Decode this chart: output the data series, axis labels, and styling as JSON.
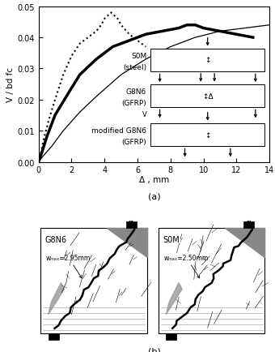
{
  "xlabel": "Δ , mm",
  "ylabel": "V / bd fᴄ",
  "xlim": [
    0,
    14
  ],
  "ylim": [
    0,
    0.05
  ],
  "xticks": [
    0,
    2,
    4,
    6,
    8,
    10,
    12,
    14
  ],
  "yticks": [
    0,
    0.01,
    0.02,
    0.03,
    0.04,
    0.05
  ],
  "label_a": "(a)",
  "label_b": "(b)",
  "crack_G8N6": "G8N6",
  "crack_S0M": "S0M",
  "wmax_G8N6": "wₘₐₓ=2.95mm",
  "wmax_S0M": "wₘₐₓ=2.50mm",
  "bg_color": "#ffffff",
  "s0m_x": [
    0,
    0.15,
    0.3,
    0.6,
    1.0,
    1.5,
    2.0,
    2.5,
    3.0,
    3.5,
    3.8,
    4.0,
    4.2,
    4.4,
    4.6,
    4.8,
    5.0,
    5.5,
    6.0,
    6.5
  ],
  "s0m_y": [
    0,
    0.003,
    0.007,
    0.013,
    0.02,
    0.028,
    0.034,
    0.038,
    0.04,
    0.042,
    0.044,
    0.046,
    0.047,
    0.048,
    0.047,
    0.046,
    0.044,
    0.041,
    0.039,
    0.037
  ],
  "g8n6_x": [
    0,
    0.2,
    0.5,
    1.0,
    1.8,
    2.5,
    3.5,
    4.5,
    5.5,
    6.5,
    7.5,
    8.5,
    9.0,
    9.5,
    10.0,
    11.0,
    12.0,
    13.0
  ],
  "g8n6_y": [
    0,
    0.003,
    0.008,
    0.015,
    0.022,
    0.028,
    0.033,
    0.037,
    0.039,
    0.041,
    0.042,
    0.043,
    0.044,
    0.044,
    0.043,
    0.042,
    0.041,
    0.04
  ],
  "mod_x": [
    0,
    0.3,
    0.8,
    1.5,
    2.5,
    3.5,
    5.0,
    6.5,
    8.0,
    9.5,
    11.0,
    12.5,
    14.0
  ],
  "mod_y": [
    0,
    0.002,
    0.005,
    0.01,
    0.016,
    0.021,
    0.028,
    0.033,
    0.037,
    0.04,
    0.042,
    0.043,
    0.044
  ]
}
